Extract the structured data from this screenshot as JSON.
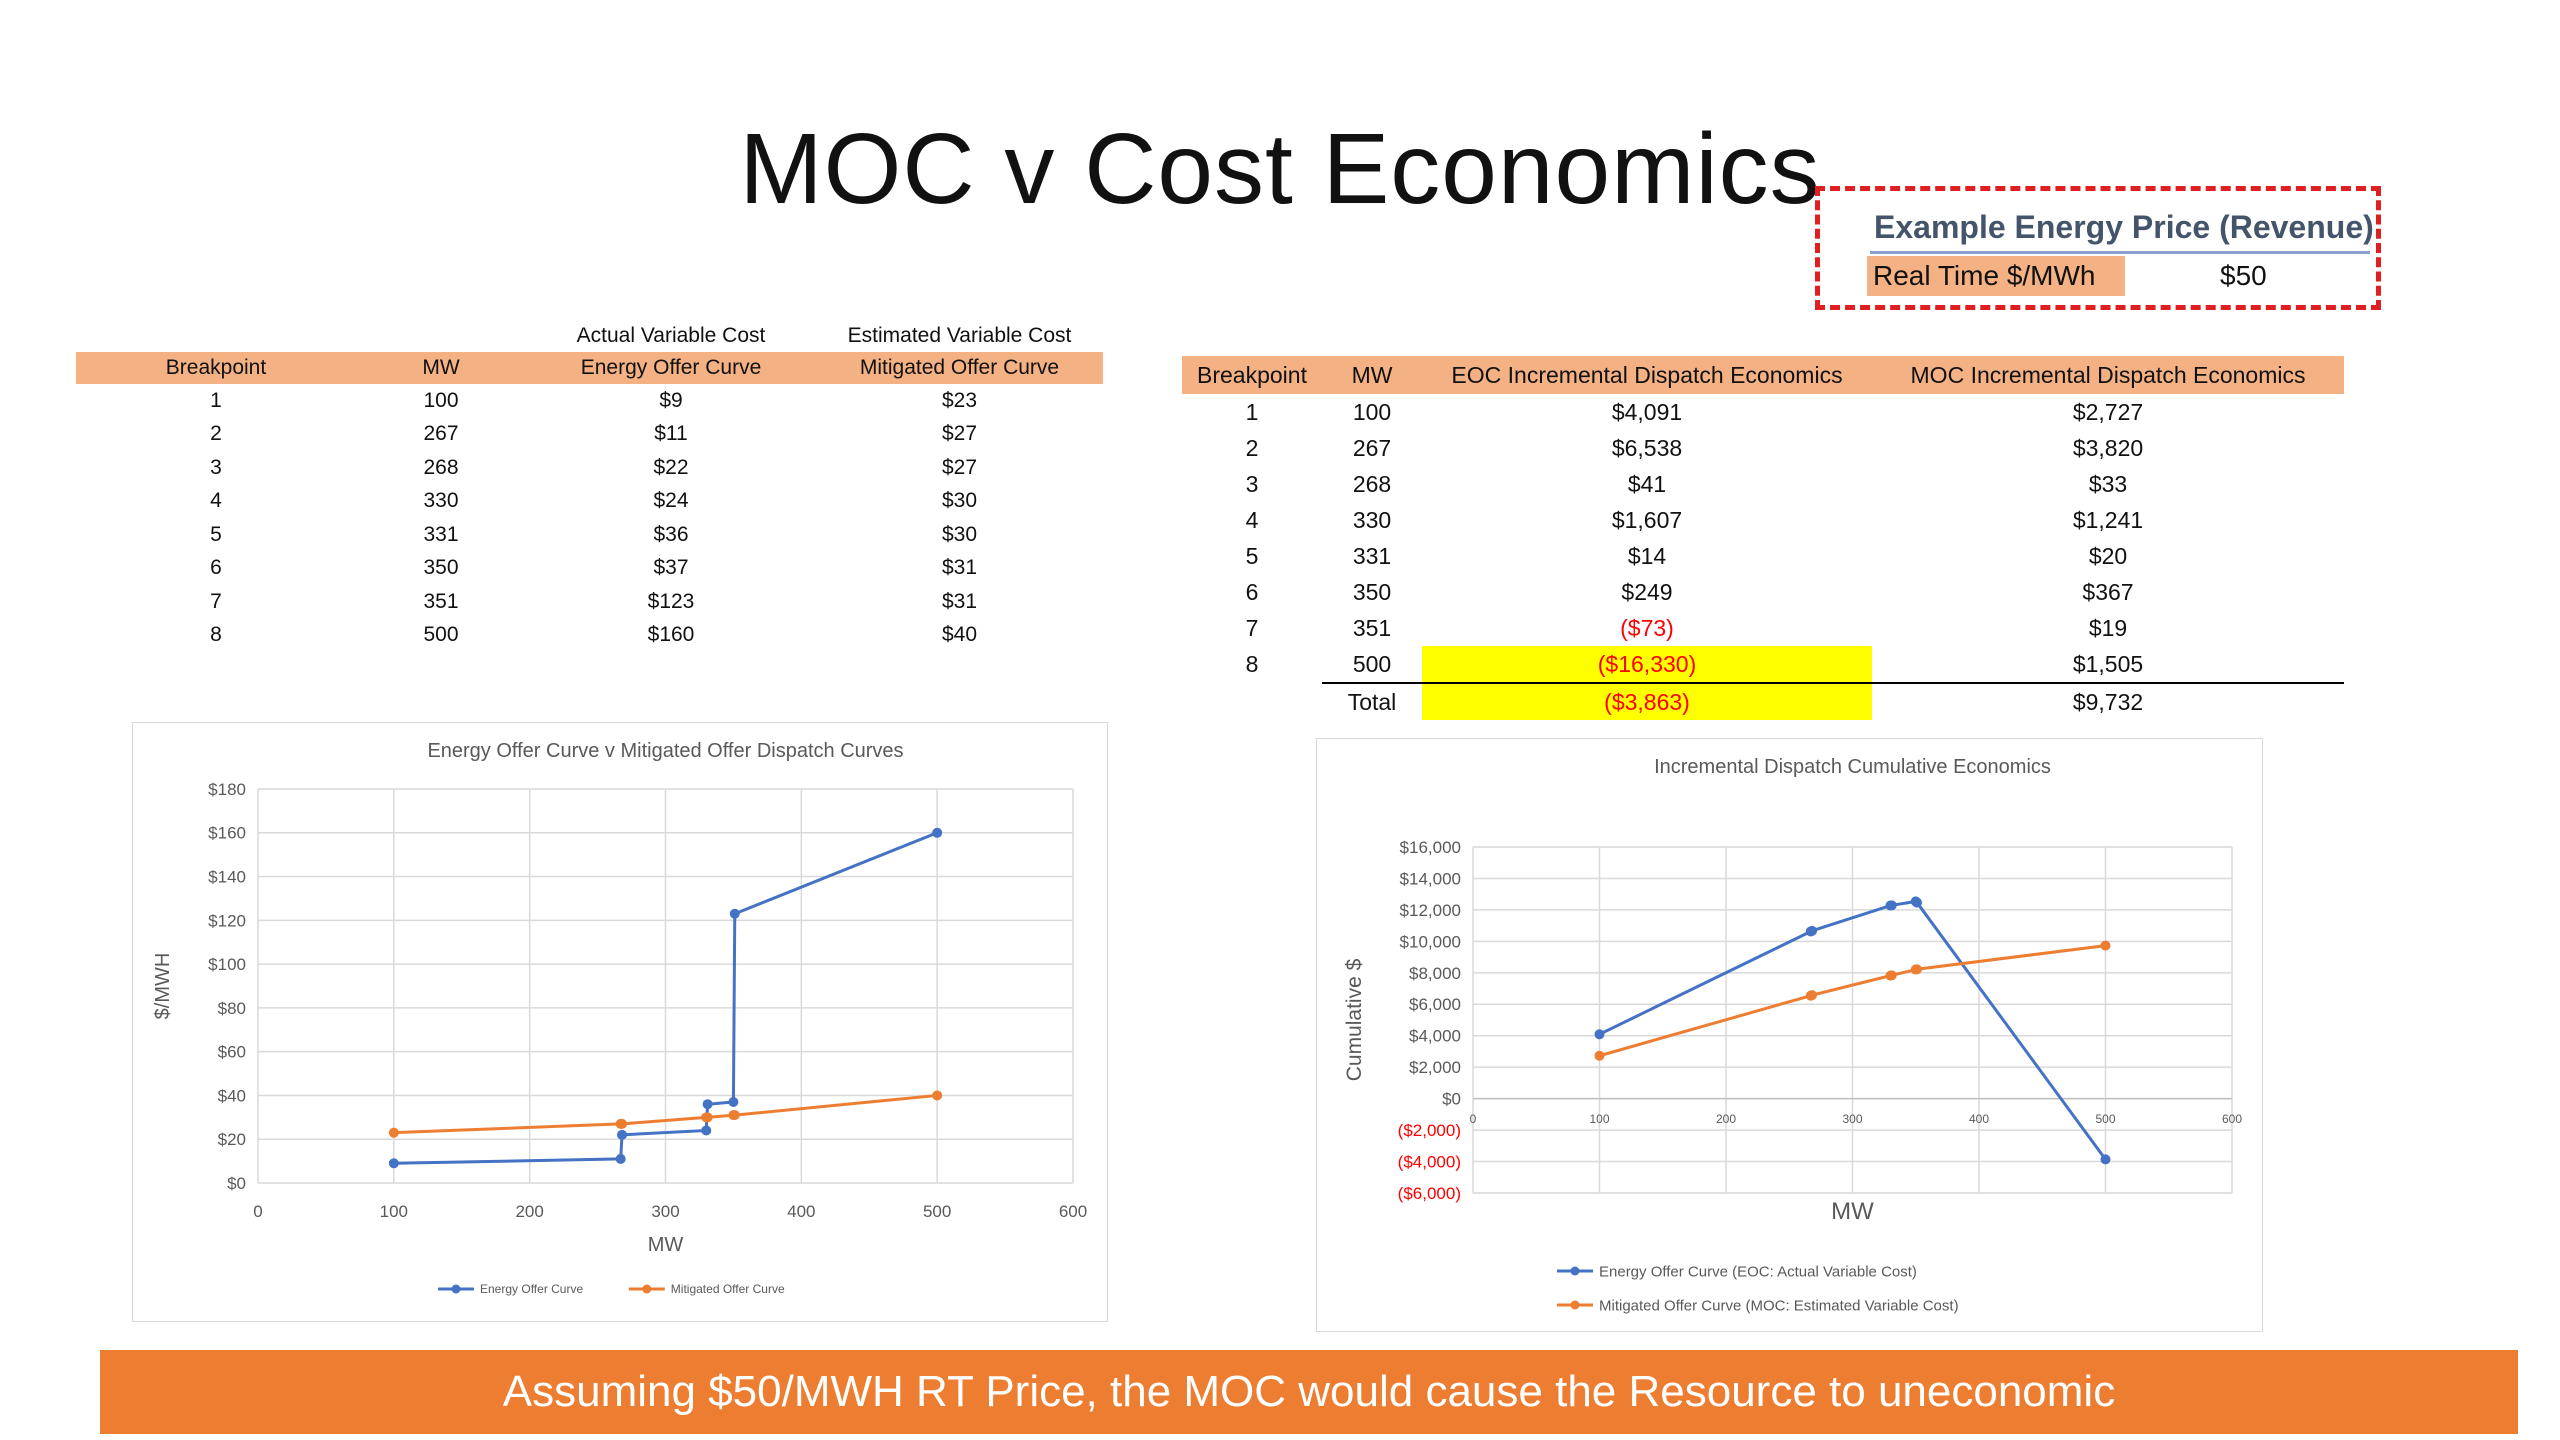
{
  "slide": {
    "title": "MOC v Cost Economics",
    "banner": "Assuming $50/MWH RT Price, the MOC would cause the Resource to uneconomic"
  },
  "price_box": {
    "header": "Example Energy Price (Revenue)",
    "label": "Real Time $/MWh",
    "value": "$50"
  },
  "offer_table": {
    "super_headers": [
      "",
      "",
      "Actual Variable Cost",
      "Estimated Variable Cost"
    ],
    "headers": [
      "Breakpoint",
      "MW",
      "Energy Offer Curve",
      "Mitigated Offer Curve"
    ],
    "rows": [
      [
        "1",
        "100",
        "$9",
        "$23"
      ],
      [
        "2",
        "267",
        "$11",
        "$27"
      ],
      [
        "3",
        "268",
        "$22",
        "$27"
      ],
      [
        "4",
        "330",
        "$24",
        "$30"
      ],
      [
        "5",
        "331",
        "$36",
        "$30"
      ],
      [
        "6",
        "350",
        "$37",
        "$31"
      ],
      [
        "7",
        "351",
        "$123",
        "$31"
      ],
      [
        "8",
        "500",
        "$160",
        "$40"
      ]
    ]
  },
  "economics_table": {
    "headers": [
      "Breakpoint",
      "MW",
      "EOC Incremental Dispatch Economics",
      "MOC Incremental Dispatch Economics"
    ],
    "rows": [
      [
        "1",
        "100",
        "$4,091",
        "$2,727"
      ],
      [
        "2",
        "267",
        "$6,538",
        "$3,820"
      ],
      [
        "3",
        "268",
        "$41",
        "$33"
      ],
      [
        "4",
        "330",
        "$1,607",
        "$1,241"
      ],
      [
        "5",
        "331",
        "$14",
        "$20"
      ],
      [
        "6",
        "350",
        "$249",
        "$367"
      ],
      [
        "7",
        "351",
        "($73)",
        "$19"
      ],
      [
        "8",
        "500",
        "($16,330)",
        "$1,505"
      ]
    ],
    "total": [
      "Total",
      "($3,863)",
      "$9,732"
    ]
  },
  "colors": {
    "blue": "#4472c4",
    "orange": "#ed7d31",
    "header_fill": "#f4b183",
    "highlight": "#ffff00",
    "negative": "#ff0000"
  },
  "chart_data": [
    {
      "type": "line",
      "title": "Energy Offer Curve v Mitigated Offer Dispatch Curves",
      "xlabel": "MW",
      "ylabel": "$/MWH",
      "xlim": [
        0,
        600
      ],
      "ylim": [
        0,
        180
      ],
      "xticks": [
        "0",
        "100",
        "200",
        "300",
        "400",
        "500",
        "600"
      ],
      "yticks": [
        "$0",
        "$20",
        "$40",
        "$60",
        "$80",
        "$100",
        "$120",
        "$140",
        "$160",
        "$180"
      ],
      "grid": true,
      "legend": "bottom",
      "series": [
        {
          "name": "Energy Offer Curve",
          "color": "#4472c4",
          "points": [
            [
              100,
              9
            ],
            [
              267,
              11
            ],
            [
              268,
              22
            ],
            [
              330,
              24
            ],
            [
              331,
              36
            ],
            [
              350,
              37
            ],
            [
              351,
              123
            ],
            [
              500,
              160
            ]
          ]
        },
        {
          "name": "Mitigated Offer Curve",
          "color": "#ed7d31",
          "points": [
            [
              100,
              23
            ],
            [
              267,
              27
            ],
            [
              268,
              27
            ],
            [
              330,
              30
            ],
            [
              331,
              30
            ],
            [
              350,
              31
            ],
            [
              351,
              31
            ],
            [
              500,
              40
            ]
          ]
        }
      ]
    },
    {
      "type": "line",
      "title": "Incremental Dispatch Cumulative Economics",
      "xlabel": "MW",
      "ylabel": "Cumulative $",
      "xlim": [
        0,
        600
      ],
      "ylim": [
        -6000,
        16000
      ],
      "xticks": [
        "0",
        "100",
        "200",
        "300",
        "400",
        "500",
        "600"
      ],
      "yticks": [
        "($6,000)",
        "($4,000)",
        "($2,000)",
        "$0",
        "$2,000",
        "$4,000",
        "$6,000",
        "$8,000",
        "$10,000",
        "$12,000",
        "$14,000",
        "$16,000"
      ],
      "grid": true,
      "legend": "bottom",
      "series": [
        {
          "name": "Energy Offer Curve (EOC: Actual Variable Cost)",
          "color": "#4472c4",
          "points": [
            [
              100,
              4091
            ],
            [
              267,
              10629
            ],
            [
              268,
              10670
            ],
            [
              330,
              12277
            ],
            [
              331,
              12291
            ],
            [
              350,
              12540
            ],
            [
              351,
              12467
            ],
            [
              500,
              -3863
            ]
          ]
        },
        {
          "name": "Mitigated Offer Curve (MOC: Estimated Variable Cost)",
          "color": "#ed7d31",
          "points": [
            [
              100,
              2727
            ],
            [
              267,
              6547
            ],
            [
              268,
              6580
            ],
            [
              330,
              7821
            ],
            [
              331,
              7841
            ],
            [
              350,
              8208
            ],
            [
              351,
              8227
            ],
            [
              500,
              9732
            ]
          ]
        }
      ]
    }
  ]
}
